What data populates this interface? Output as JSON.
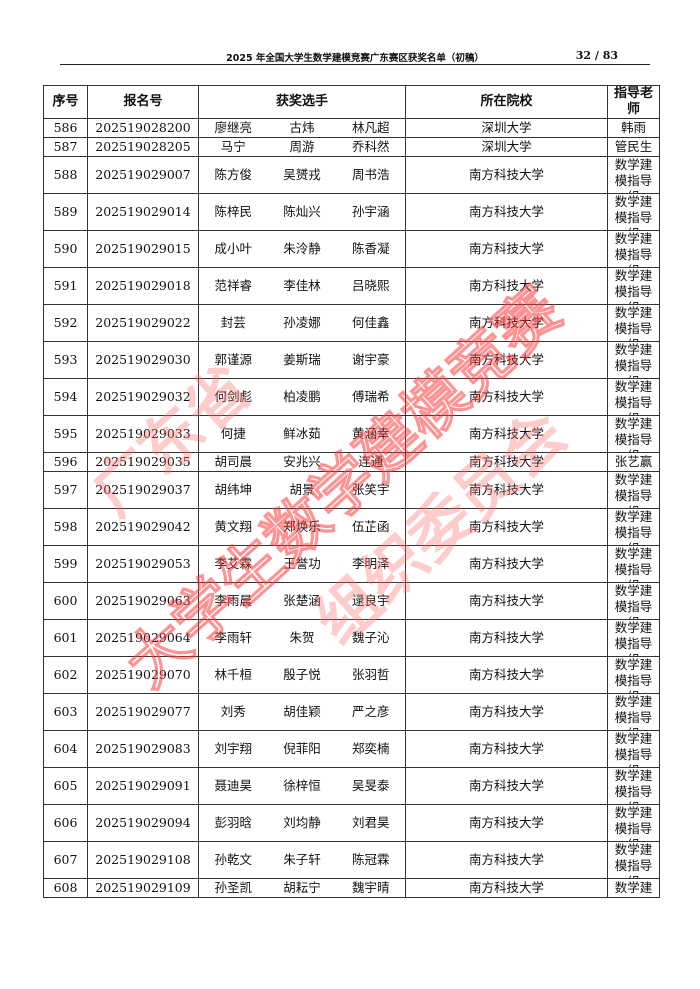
{
  "header": {
    "title": "2025 年全国大学生数学建模竞赛广东赛区获奖名单（初稿）",
    "page": "32 / 83"
  },
  "columns": [
    "序号",
    "报名号",
    "获奖选手",
    "所在院校",
    "指导老师"
  ],
  "watermark": [
    "广东省",
    "大学生数学建模竞赛",
    "组织委员会"
  ],
  "rows": [
    {
      "no": "586",
      "id": "202519028200",
      "names": [
        "廖继亮",
        "古炜",
        "林凡超"
      ],
      "school": "深圳大学",
      "advisor": "韩雨"
    },
    {
      "no": "587",
      "id": "202519028205",
      "names": [
        "马宁",
        "周游",
        "乔科然"
      ],
      "school": "深圳大学",
      "advisor": "管民生"
    },
    {
      "no": "588",
      "id": "202519029007",
      "names": [
        "陈方俊",
        "吴赟戎",
        "周书浩"
      ],
      "school": "南方科技大学",
      "advisor": "数学建模指导组"
    },
    {
      "no": "589",
      "id": "202519029014",
      "names": [
        "陈梓民",
        "陈灿兴",
        "孙宇涵"
      ],
      "school": "南方科技大学",
      "advisor": "数学建模指导组"
    },
    {
      "no": "590",
      "id": "202519029015",
      "names": [
        "成小叶",
        "朱泠静",
        "陈香凝"
      ],
      "school": "南方科技大学",
      "advisor": "数学建模指导组"
    },
    {
      "no": "591",
      "id": "202519029018",
      "names": [
        "范祥睿",
        "李佳林",
        "吕晓熙"
      ],
      "school": "南方科技大学",
      "advisor": "数学建模指导组"
    },
    {
      "no": "592",
      "id": "202519029022",
      "names": [
        "封芸",
        "孙凌娜",
        "何佳鑫"
      ],
      "school": "南方科技大学",
      "advisor": "数学建模指导组"
    },
    {
      "no": "593",
      "id": "202519029030",
      "names": [
        "郭谨源",
        "姜斯瑞",
        "谢宇豪"
      ],
      "school": "南方科技大学",
      "advisor": "数学建模指导组"
    },
    {
      "no": "594",
      "id": "202519029032",
      "names": [
        "何剑彪",
        "柏凌鹏",
        "傅瑞希"
      ],
      "school": "南方科技大学",
      "advisor": "数学建模指导组"
    },
    {
      "no": "595",
      "id": "202519029033",
      "names": [
        "何捷",
        "鲜冰茹",
        "黄涵幸"
      ],
      "school": "南方科技大学",
      "advisor": "数学建模指导组"
    },
    {
      "no": "596",
      "id": "202519029035",
      "names": [
        "胡司晨",
        "安兆兴",
        "连通"
      ],
      "school": "南方科技大学",
      "advisor": "张艺赢"
    },
    {
      "no": "597",
      "id": "202519029037",
      "names": [
        "胡纬坤",
        "胡景",
        "张笑宇"
      ],
      "school": "南方科技大学",
      "advisor": "数学建模指导组"
    },
    {
      "no": "598",
      "id": "202519029042",
      "names": [
        "黄文翔",
        "郑焕乐",
        "伍芷函"
      ],
      "school": "南方科技大学",
      "advisor": "数学建模指导组"
    },
    {
      "no": "599",
      "id": "202519029053",
      "names": [
        "李艾霖",
        "王誉功",
        "李明泽"
      ],
      "school": "南方科技大学",
      "advisor": "数学建模指导组"
    },
    {
      "no": "600",
      "id": "202519029063",
      "names": [
        "李雨晨",
        "张楚涵",
        "逯良宇"
      ],
      "school": "南方科技大学",
      "advisor": "数学建模指导组"
    },
    {
      "no": "601",
      "id": "202519029064",
      "names": [
        "李雨轩",
        "朱贺",
        "魏子沁"
      ],
      "school": "南方科技大学",
      "advisor": "数学建模指导组"
    },
    {
      "no": "602",
      "id": "202519029070",
      "names": [
        "林千桓",
        "殷子悦",
        "张羽哲"
      ],
      "school": "南方科技大学",
      "advisor": "数学建模指导组"
    },
    {
      "no": "603",
      "id": "202519029077",
      "names": [
        "刘秀",
        "胡佳颖",
        "严之彦"
      ],
      "school": "南方科技大学",
      "advisor": "数学建模指导组"
    },
    {
      "no": "604",
      "id": "202519029083",
      "names": [
        "刘宇翔",
        "倪菲阳",
        "郑奕楠"
      ],
      "school": "南方科技大学",
      "advisor": "数学建模指导组"
    },
    {
      "no": "605",
      "id": "202519029091",
      "names": [
        "聂迪昊",
        "徐梓恒",
        "吴旻泰"
      ],
      "school": "南方科技大学",
      "advisor": "数学建模指导组"
    },
    {
      "no": "606",
      "id": "202519029094",
      "names": [
        "彭羽晗",
        "刘均静",
        "刘君昊"
      ],
      "school": "南方科技大学",
      "advisor": "数学建模指导组"
    },
    {
      "no": "607",
      "id": "202519029108",
      "names": [
        "孙乾文",
        "朱子轩",
        "陈冠霖"
      ],
      "school": "南方科技大学",
      "advisor": "数学建模指导组"
    },
    {
      "no": "608",
      "id": "202519029109",
      "names": [
        "孙圣凯",
        "胡耘宁",
        "魏宇晴"
      ],
      "school": "南方科技大学",
      "advisor": "数学建模指导组"
    }
  ]
}
